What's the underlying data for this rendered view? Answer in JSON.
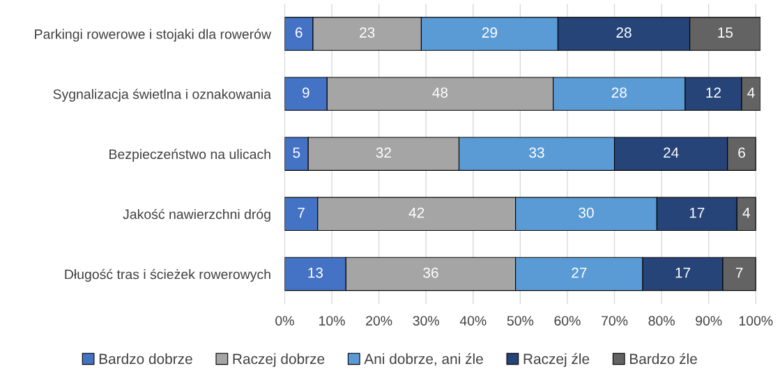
{
  "chart_data": {
    "type": "bar",
    "orientation": "horizontal",
    "stacked": true,
    "categories": [
      "Parkingi rowerowe i stojaki dla rowerów",
      "Sygnalizacja świetlna i oznakowania",
      "Bezpieczeństwo na ulicach",
      "Jakość nawierzchni dróg",
      "Długość tras i ścieżek rowerowych"
    ],
    "series": [
      {
        "name": "Bardzo dobrze",
        "color": "#4472c4",
        "values": [
          6,
          9,
          5,
          7,
          13
        ]
      },
      {
        "name": "Raczej dobrze",
        "color": "#a5a5a5",
        "values": [
          23,
          48,
          32,
          42,
          36
        ]
      },
      {
        "name": "Ani dobrze, ani źle",
        "color": "#5b9bd5",
        "values": [
          29,
          28,
          33,
          30,
          27
        ]
      },
      {
        "name": "Raczej źle",
        "color": "#264478",
        "values": [
          28,
          12,
          24,
          17,
          17
        ]
      },
      {
        "name": "Bardzo źle",
        "color": "#636363",
        "values": [
          15,
          4,
          6,
          4,
          7
        ]
      }
    ],
    "xlim": [
      0,
      101
    ],
    "xticks": [
      {
        "value": 0,
        "label": "0%"
      },
      {
        "value": 10,
        "label": "10%"
      },
      {
        "value": 20,
        "label": "20%"
      },
      {
        "value": 30,
        "label": "30%"
      },
      {
        "value": 40,
        "label": "40%"
      },
      {
        "value": 50,
        "label": "50%"
      },
      {
        "value": 60,
        "label": "60%"
      },
      {
        "value": 70,
        "label": "70%"
      },
      {
        "value": 80,
        "label": "80%"
      },
      {
        "value": 90,
        "label": "90%"
      },
      {
        "value": 100,
        "label": "100%"
      }
    ],
    "grid": "x",
    "legend": "bottom",
    "data_labels": true
  }
}
